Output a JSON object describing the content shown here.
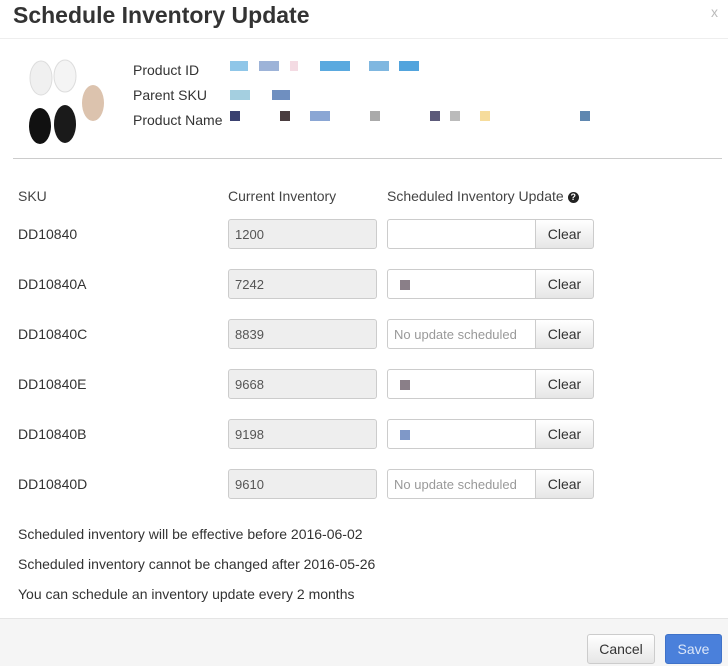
{
  "dialog": {
    "title": "Schedule Inventory Update",
    "close_label": "x"
  },
  "product": {
    "labels": [
      "Product ID",
      "Parent SKU",
      "Product Name"
    ],
    "redacted_colors": {
      "product_id": [
        "#8fc6e8",
        "#9db3d8",
        "#f4dbe3",
        "#5aa9df",
        "#7fb7e0",
        "#52a4dd"
      ],
      "parent_sku": [
        "#a4cfe0",
        "#6f8fc0"
      ],
      "product_name": [
        "#3a4170",
        "#4a3d3f",
        "#8aa6d4",
        "#aaa",
        "#5c5a7a",
        "#bbb",
        "#f6dc9c",
        "#5f87b0"
      ]
    }
  },
  "table": {
    "headers": {
      "sku": "SKU",
      "current": "Current Inventory",
      "update": "Scheduled Inventory Update"
    },
    "placeholder": "No update scheduled",
    "clear_label": "Clear",
    "rows": [
      {
        "sku": "DD10840",
        "current": "1200",
        "update_state": "empty"
      },
      {
        "sku": "DD10840A",
        "current": "7242",
        "update_state": "redacted"
      },
      {
        "sku": "DD10840C",
        "current": "8839",
        "update_state": "placeholder"
      },
      {
        "sku": "DD10840E",
        "current": "9668",
        "update_state": "redacted"
      },
      {
        "sku": "DD10840B",
        "current": "9198",
        "update_state": "redacted"
      },
      {
        "sku": "DD10840D",
        "current": "9610",
        "update_state": "placeholder"
      }
    ]
  },
  "notes": [
    "Scheduled inventory will be effective before 2016-06-02",
    "Scheduled inventory cannot be changed after 2016-05-26",
    "You can schedule an inventory update every 2 months"
  ],
  "footer": {
    "cancel_label": "Cancel",
    "save_label": "Save"
  },
  "colors": {
    "primary": "#4a80db"
  }
}
